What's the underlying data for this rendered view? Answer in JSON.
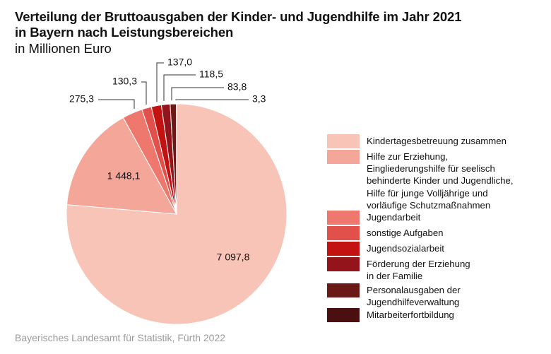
{
  "header": {
    "title_line1": "Verteilung der Bruttoausgaben der Kinder- und Jugendhilfe im Jahr 2021",
    "title_line2": "in Bayern nach Leistungsbereichen",
    "subtitle": "in Millionen Euro"
  },
  "footer": {
    "source": "Bayerisches Landesamt für Statistik, Fürth 2022"
  },
  "chart_data": {
    "type": "pie",
    "title": "Verteilung der Bruttoausgaben der Kinder- und Jugendhilfe im Jahr 2021 in Bayern nach Leistungsbereichen",
    "subtitle": "in Millionen Euro",
    "unit": "Millionen Euro",
    "start": "12 o'clock",
    "direction": "clockwise",
    "legend_position": "right",
    "slices": [
      {
        "name": "Kindertagesbetreuung zusammen",
        "value": 7097.8,
        "label": "7 097,8",
        "color": "#F8C4B8"
      },
      {
        "name": "Hilfe zur Erziehung, Eingliederungshilfe für seelisch behinderte Kinder und Jugendliche, Hilfe für junge Volljährige und vorläufige Schutzmaßnahmen",
        "value": 1448.1,
        "label": "1 448,1",
        "color": "#F4A699"
      },
      {
        "name": "Jugendarbeit",
        "value": 275.3,
        "label": "275,3",
        "color": "#EE786E"
      },
      {
        "name": "sonstige Aufgaben",
        "value": 130.3,
        "label": "130,3",
        "color": "#E2504C"
      },
      {
        "name": "Jugendsozialarbeit",
        "value": 137.0,
        "label": "137,0",
        "color": "#C21212"
      },
      {
        "name": "Förderung der Erziehung in der Familie",
        "value": 118.5,
        "label": "118,5",
        "color": "#93141B"
      },
      {
        "name": "Personalausgaben der Jugendhilfeverwaltung",
        "value": 83.8,
        "label": "83,8",
        "color": "#6A1917"
      },
      {
        "name": "Mitarbeiterfortbildung",
        "value": 3.3,
        "label": "3,3",
        "color": "#4A0F10"
      }
    ]
  },
  "legend": {
    "items": [
      {
        "label": "Kindertagesbetreuung zusammen",
        "color": "#F8C4B8"
      },
      {
        "label": "Hilfe zur Erziehung,\nEingliederungshilfe für seelisch\nbehinderte Kinder und Jugendliche,\nHilfe für junge Volljährige und\nvorläufige Schutzmaßnahmen",
        "color": "#F4A699"
      },
      {
        "label": "Jugendarbeit",
        "color": "#EE786E"
      },
      {
        "label": "sonstige Aufgaben",
        "color": "#E2504C"
      },
      {
        "label": "Jugendsozialarbeit",
        "color": "#C21212"
      },
      {
        "label": "Förderung der Erziehung\nin der Familie",
        "color": "#93141B"
      },
      {
        "label": "Personalausgaben der\nJugendhilfeverwaltung",
        "color": "#6A1917"
      },
      {
        "label": "Mitarbeiterfortbildung",
        "color": "#4A0F10"
      }
    ]
  }
}
